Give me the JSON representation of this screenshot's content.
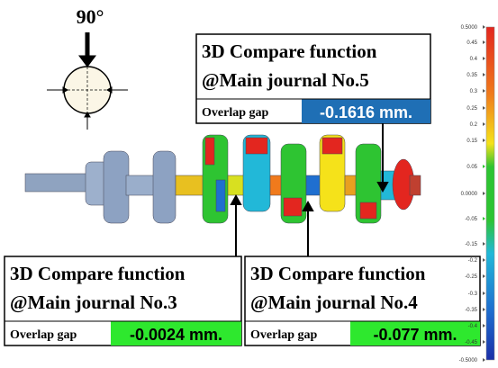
{
  "view_angle": "90°",
  "callouts": [
    {
      "title": "3D Compare function",
      "location": "@Main journal No.5",
      "gap_label": "Overlap gap",
      "gap_value": "-0.1616 mm."
    },
    {
      "title": "3D Compare function",
      "location": "@Main journal No.3",
      "gap_label": "Overlap gap",
      "gap_value": "-0.0024 mm."
    },
    {
      "title": "3D Compare function",
      "location": "@Main journal No.4",
      "gap_label": "Overlap gap",
      "gap_value": "-0.077 mm."
    }
  ],
  "color_scale": [
    "0.5000",
    "0.45",
    "0.4",
    "0.35",
    "0.3",
    "0.25",
    "0.2",
    "0.15",
    "0.05",
    "0.0000",
    "-0.05",
    "-0.15",
    "-0.2",
    "-0.25",
    "-0.3",
    "-0.35",
    "-0.4",
    "-0.45",
    "-0.5000"
  ]
}
